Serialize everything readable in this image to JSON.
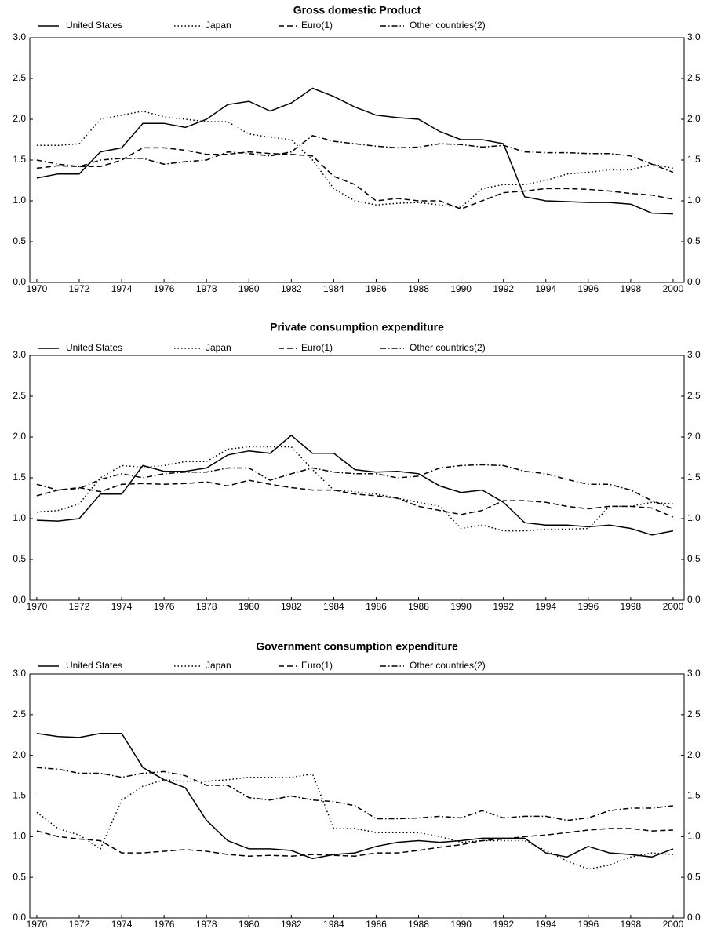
{
  "chart_data": [
    {
      "type": "line",
      "title": "Gross domestic Product",
      "x": [
        1970,
        1971,
        1972,
        1973,
        1974,
        1975,
        1976,
        1977,
        1978,
        1979,
        1980,
        1981,
        1982,
        1983,
        1984,
        1985,
        1986,
        1987,
        1988,
        1989,
        1990,
        1991,
        1992,
        1993,
        1994,
        1995,
        1996,
        1997,
        1998,
        1999,
        2000
      ],
      "series": [
        {
          "name": "United States",
          "color": "#000000",
          "dash": "solid",
          "values": [
            1.28,
            1.33,
            1.33,
            1.6,
            1.65,
            1.95,
            1.95,
            1.9,
            2.0,
            2.18,
            2.22,
            2.1,
            2.2,
            2.38,
            2.28,
            2.15,
            2.05,
            2.02,
            2.0,
            1.85,
            1.75,
            1.75,
            1.7,
            1.05,
            1.0,
            0.99,
            0.98,
            0.98,
            0.96,
            0.85,
            0.84
          ]
        },
        {
          "name": "Japan",
          "color": "#000000",
          "dash": "dotted",
          "values": [
            1.68,
            1.68,
            1.7,
            2.0,
            2.05,
            2.1,
            2.03,
            2.0,
            1.97,
            1.97,
            1.82,
            1.78,
            1.75,
            1.5,
            1.15,
            1.0,
            0.95,
            0.97,
            0.98,
            0.95,
            0.92,
            1.15,
            1.2,
            1.2,
            1.25,
            1.33,
            1.35,
            1.38,
            1.38,
            1.45,
            1.4
          ]
        },
        {
          "name": "Euro(1)",
          "color": "#000000",
          "dash": "dashed",
          "values": [
            1.4,
            1.43,
            1.42,
            1.42,
            1.5,
            1.65,
            1.65,
            1.62,
            1.57,
            1.57,
            1.6,
            1.58,
            1.57,
            1.55,
            1.3,
            1.2,
            1.0,
            1.03,
            1.0,
            1.0,
            0.9,
            1.0,
            1.1,
            1.12,
            1.15,
            1.15,
            1.14,
            1.12,
            1.09,
            1.07,
            1.02
          ]
        },
        {
          "name": "Other countries(2)",
          "color": "#000000",
          "dash": "dashdot",
          "values": [
            1.5,
            1.45,
            1.42,
            1.5,
            1.52,
            1.52,
            1.45,
            1.48,
            1.5,
            1.6,
            1.58,
            1.55,
            1.6,
            1.8,
            1.73,
            1.7,
            1.67,
            1.65,
            1.66,
            1.7,
            1.69,
            1.66,
            1.68,
            1.6,
            1.59,
            1.59,
            1.58,
            1.58,
            1.55,
            1.45,
            1.35
          ]
        }
      ],
      "xlim": [
        1969.67,
        2000.52
      ],
      "xticks": [
        1970,
        1972,
        1974,
        1976,
        1978,
        1980,
        1982,
        1984,
        1986,
        1988,
        1990,
        1992,
        1994,
        1996,
        1998,
        2000
      ],
      "ylim": [
        0,
        3
      ],
      "yticks": [
        {
          "value": 0,
          "label": "0.0"
        },
        {
          "value": 0.5,
          "label": "0.5"
        },
        {
          "value": 1,
          "label": "1.0"
        },
        {
          "value": 1.5,
          "label": "1.5"
        },
        {
          "value": 2,
          "label": "2.0"
        },
        {
          "value": 2.5,
          "label": "2.5"
        },
        {
          "value": 3,
          "label": "3.0"
        }
      ]
    },
    {
      "type": "line",
      "title": "Private consumption expenditure",
      "x": [
        1970,
        1971,
        1972,
        1973,
        1974,
        1975,
        1976,
        1977,
        1978,
        1979,
        1980,
        1981,
        1982,
        1983,
        1984,
        1985,
        1986,
        1987,
        1988,
        1989,
        1990,
        1991,
        1992,
        1993,
        1994,
        1995,
        1996,
        1997,
        1998,
        1999,
        2000
      ],
      "series": [
        {
          "name": "United States",
          "color": "#000000",
          "dash": "solid",
          "values": [
            0.98,
            0.97,
            1.0,
            1.3,
            1.3,
            1.65,
            1.58,
            1.58,
            1.62,
            1.78,
            1.83,
            1.8,
            2.02,
            1.8,
            1.8,
            1.6,
            1.57,
            1.58,
            1.55,
            1.4,
            1.32,
            1.35,
            1.2,
            0.95,
            0.92,
            0.92,
            0.9,
            0.92,
            0.88,
            0.8,
            0.85
          ]
        },
        {
          "name": "Japan",
          "color": "#000000",
          "dash": "dotted",
          "values": [
            1.08,
            1.1,
            1.18,
            1.5,
            1.65,
            1.63,
            1.65,
            1.7,
            1.7,
            1.85,
            1.88,
            1.88,
            1.88,
            1.6,
            1.35,
            1.33,
            1.3,
            1.25,
            1.2,
            1.15,
            0.88,
            0.92,
            0.85,
            0.85,
            0.87,
            0.87,
            0.88,
            1.15,
            1.15,
            1.2,
            1.18
          ]
        },
        {
          "name": "Euro(1)",
          "color": "#000000",
          "dash": "dashed",
          "values": [
            1.28,
            1.35,
            1.38,
            1.33,
            1.42,
            1.43,
            1.42,
            1.43,
            1.45,
            1.4,
            1.47,
            1.42,
            1.38,
            1.35,
            1.35,
            1.3,
            1.28,
            1.25,
            1.15,
            1.1,
            1.05,
            1.1,
            1.22,
            1.22,
            1.2,
            1.15,
            1.12,
            1.15,
            1.15,
            1.13,
            1.02
          ]
        },
        {
          "name": "Other countries(2)",
          "color": "#000000",
          "dash": "dashdot",
          "values": [
            1.42,
            1.35,
            1.37,
            1.48,
            1.55,
            1.5,
            1.55,
            1.57,
            1.57,
            1.62,
            1.62,
            1.47,
            1.55,
            1.62,
            1.57,
            1.55,
            1.55,
            1.5,
            1.52,
            1.62,
            1.65,
            1.66,
            1.65,
            1.58,
            1.55,
            1.48,
            1.42,
            1.42,
            1.35,
            1.22,
            1.12
          ]
        }
      ],
      "xlim": [
        1969.67,
        2000.52
      ],
      "xticks": [
        1970,
        1972,
        1974,
        1976,
        1978,
        1980,
        1982,
        1984,
        1986,
        1988,
        1990,
        1992,
        1994,
        1996,
        1998,
        2000
      ],
      "ylim": [
        0,
        3
      ],
      "yticks": [
        {
          "value": 0,
          "label": "0.0"
        },
        {
          "value": 0.5,
          "label": "0.5"
        },
        {
          "value": 1,
          "label": "1.0"
        },
        {
          "value": 1.5,
          "label": "1.5"
        },
        {
          "value": 2,
          "label": "2.0"
        },
        {
          "value": 2.5,
          "label": "2.5"
        },
        {
          "value": 3,
          "label": "3.0"
        }
      ]
    },
    {
      "type": "line",
      "title": "Government consumption expenditure",
      "x": [
        1970,
        1971,
        1972,
        1973,
        1974,
        1975,
        1976,
        1977,
        1978,
        1979,
        1980,
        1981,
        1982,
        1983,
        1984,
        1985,
        1986,
        1987,
        1988,
        1989,
        1990,
        1991,
        1992,
        1993,
        1994,
        1995,
        1996,
        1997,
        1998,
        1999,
        2000
      ],
      "series": [
        {
          "name": "United States",
          "color": "#000000",
          "dash": "solid",
          "values": [
            2.27,
            2.23,
            2.22,
            2.27,
            2.27,
            1.85,
            1.7,
            1.6,
            1.2,
            0.95,
            0.85,
            0.85,
            0.83,
            0.73,
            0.78,
            0.8,
            0.88,
            0.93,
            0.95,
            0.93,
            0.95,
            0.98,
            0.98,
            0.98,
            0.8,
            0.75,
            0.88,
            0.8,
            0.78,
            0.75,
            0.85
          ]
        },
        {
          "name": "Japan",
          "color": "#000000",
          "dash": "dotted",
          "values": [
            1.3,
            1.1,
            1.02,
            0.85,
            1.45,
            1.62,
            1.7,
            1.68,
            1.68,
            1.7,
            1.73,
            1.73,
            1.73,
            1.77,
            1.1,
            1.1,
            1.05,
            1.05,
            1.05,
            1.0,
            0.93,
            0.95,
            0.95,
            0.95,
            0.83,
            0.7,
            0.6,
            0.65,
            0.75,
            0.8,
            0.78
          ]
        },
        {
          "name": "Euro(1)",
          "color": "#000000",
          "dash": "dashed",
          "values": [
            1.07,
            1.0,
            0.97,
            0.95,
            0.8,
            0.8,
            0.82,
            0.84,
            0.82,
            0.78,
            0.76,
            0.77,
            0.76,
            0.78,
            0.77,
            0.76,
            0.8,
            0.8,
            0.83,
            0.87,
            0.9,
            0.95,
            0.97,
            1.0,
            1.02,
            1.05,
            1.08,
            1.1,
            1.1,
            1.07,
            1.08
          ]
        },
        {
          "name": "Other countries(2)",
          "color": "#000000",
          "dash": "dashdot",
          "values": [
            1.85,
            1.83,
            1.78,
            1.78,
            1.73,
            1.78,
            1.8,
            1.75,
            1.63,
            1.63,
            1.48,
            1.45,
            1.5,
            1.45,
            1.43,
            1.38,
            1.22,
            1.22,
            1.23,
            1.25,
            1.23,
            1.32,
            1.23,
            1.25,
            1.25,
            1.2,
            1.23,
            1.32,
            1.35,
            1.35,
            1.38
          ]
        }
      ],
      "xlim": [
        1969.67,
        2000.52
      ],
      "xticks": [
        1970,
        1972,
        1974,
        1976,
        1978,
        1980,
        1982,
        1984,
        1986,
        1988,
        1990,
        1992,
        1994,
        1996,
        1998,
        2000
      ],
      "ylim": [
        0,
        3
      ],
      "yticks": [
        {
          "value": 0,
          "label": "0.0"
        },
        {
          "value": 0.5,
          "label": "0.5"
        },
        {
          "value": 1,
          "label": "1.0"
        },
        {
          "value": 1.5,
          "label": "1.5"
        },
        {
          "value": 2,
          "label": "2.0"
        },
        {
          "value": 2.5,
          "label": "2.5"
        },
        {
          "value": 3,
          "label": "3.0"
        }
      ]
    }
  ]
}
